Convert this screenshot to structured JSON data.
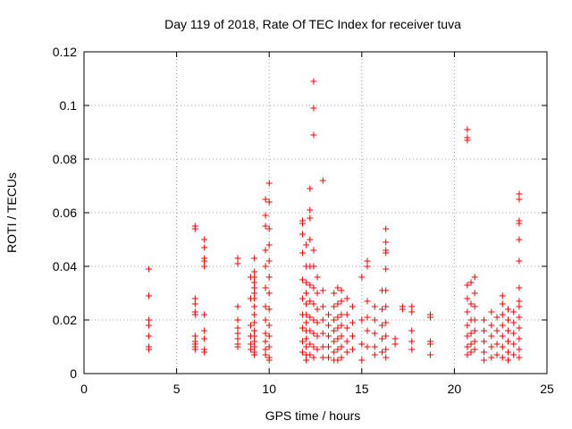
{
  "chart_data": {
    "type": "scatter",
    "title": "Day 119 of 2018, Rate Of TEC Index for receiver tuva",
    "xlabel": "GPS time / hours",
    "ylabel": "ROTI / TECUs",
    "xlim": [
      0,
      25
    ],
    "ylim": [
      0,
      0.12
    ],
    "xticks": [
      0,
      5,
      10,
      15,
      20,
      25
    ],
    "xtick_labels": [
      "0",
      "5",
      "10",
      "15",
      "20",
      "25"
    ],
    "yticks": [
      0,
      0.02,
      0.04,
      0.06,
      0.08,
      0.1,
      0.12
    ],
    "ytick_labels": [
      "0",
      "0.02",
      "0.04",
      "0.06",
      "0.08",
      "0.1",
      "0.12"
    ],
    "grid": true,
    "marker": "+",
    "color": "#ff0000",
    "series": [
      {
        "name": "ROTI",
        "points": [
          [
            3.5,
            0.039
          ],
          [
            3.5,
            0.029
          ],
          [
            3.5,
            0.02
          ],
          [
            3.5,
            0.018
          ],
          [
            3.5,
            0.014
          ],
          [
            3.5,
            0.01
          ],
          [
            3.5,
            0.009
          ],
          [
            6.0,
            0.055
          ],
          [
            6.0,
            0.054
          ],
          [
            6.0,
            0.028
          ],
          [
            6.0,
            0.026
          ],
          [
            6.0,
            0.023
          ],
          [
            6.0,
            0.022
          ],
          [
            6.0,
            0.014
          ],
          [
            6.0,
            0.012
          ],
          [
            6.0,
            0.011
          ],
          [
            6.0,
            0.01
          ],
          [
            6.0,
            0.009
          ],
          [
            6.5,
            0.05
          ],
          [
            6.5,
            0.047
          ],
          [
            6.5,
            0.043
          ],
          [
            6.5,
            0.042
          ],
          [
            6.5,
            0.04
          ],
          [
            6.5,
            0.022
          ],
          [
            6.5,
            0.016
          ],
          [
            6.5,
            0.013
          ],
          [
            6.5,
            0.009
          ],
          [
            6.5,
            0.008
          ],
          [
            8.3,
            0.043
          ],
          [
            8.3,
            0.041
          ],
          [
            8.3,
            0.025
          ],
          [
            8.3,
            0.02
          ],
          [
            8.3,
            0.017
          ],
          [
            8.3,
            0.015
          ],
          [
            8.3,
            0.013
          ],
          [
            8.3,
            0.011
          ],
          [
            8.3,
            0.01
          ],
          [
            9.2,
            0.043
          ],
          [
            9.2,
            0.038
          ],
          [
            9.2,
            0.036
          ],
          [
            9.2,
            0.034
          ],
          [
            9.2,
            0.032
          ],
          [
            9.2,
            0.03
          ],
          [
            9.2,
            0.028
          ],
          [
            9.2,
            0.025
          ],
          [
            9.2,
            0.022
          ],
          [
            9.2,
            0.019
          ],
          [
            9.2,
            0.016
          ],
          [
            9.2,
            0.014
          ],
          [
            9.2,
            0.012
          ],
          [
            9.2,
            0.01
          ],
          [
            9.2,
            0.008
          ],
          [
            9.2,
            0.007
          ],
          [
            9.0,
            0.036
          ],
          [
            9.0,
            0.028
          ],
          [
            9.0,
            0.018
          ],
          [
            9.0,
            0.014
          ],
          [
            9.0,
            0.011
          ],
          [
            9.0,
            0.009
          ],
          [
            9.8,
            0.065
          ],
          [
            9.8,
            0.059
          ],
          [
            9.8,
            0.055
          ],
          [
            9.8,
            0.046
          ],
          [
            9.8,
            0.04
          ],
          [
            9.8,
            0.032
          ],
          [
            9.8,
            0.025
          ],
          [
            9.8,
            0.02
          ],
          [
            9.8,
            0.015
          ],
          [
            9.8,
            0.012
          ],
          [
            9.8,
            0.009
          ],
          [
            9.8,
            0.007
          ],
          [
            10.0,
            0.071
          ],
          [
            10.0,
            0.064
          ],
          [
            10.0,
            0.054
          ],
          [
            10.0,
            0.048
          ],
          [
            10.0,
            0.042
          ],
          [
            10.0,
            0.036
          ],
          [
            10.0,
            0.03
          ],
          [
            10.0,
            0.024
          ],
          [
            10.0,
            0.018
          ],
          [
            10.0,
            0.014
          ],
          [
            10.0,
            0.01
          ],
          [
            10.0,
            0.006
          ],
          [
            10.0,
            0.005
          ],
          [
            11.8,
            0.057
          ],
          [
            11.8,
            0.056
          ],
          [
            11.8,
            0.052
          ],
          [
            11.8,
            0.045
          ],
          [
            11.8,
            0.035
          ],
          [
            11.8,
            0.028
          ],
          [
            11.8,
            0.022
          ],
          [
            11.8,
            0.017
          ],
          [
            11.8,
            0.012
          ],
          [
            11.8,
            0.008
          ],
          [
            12.0,
            0.048
          ],
          [
            12.0,
            0.04
          ],
          [
            12.0,
            0.034
          ],
          [
            12.0,
            0.03
          ],
          [
            12.0,
            0.026
          ],
          [
            12.0,
            0.022
          ],
          [
            12.0,
            0.019
          ],
          [
            12.0,
            0.016
          ],
          [
            12.0,
            0.013
          ],
          [
            12.0,
            0.01
          ],
          [
            12.0,
            0.007
          ],
          [
            12.0,
            0.005
          ],
          [
            12.2,
            0.069
          ],
          [
            12.2,
            0.061
          ],
          [
            12.2,
            0.058
          ],
          [
            12.2,
            0.05
          ],
          [
            12.2,
            0.04
          ],
          [
            12.2,
            0.033
          ],
          [
            12.2,
            0.027
          ],
          [
            12.2,
            0.021
          ],
          [
            12.2,
            0.016
          ],
          [
            12.2,
            0.011
          ],
          [
            12.2,
            0.007
          ],
          [
            12.4,
            0.109
          ],
          [
            12.4,
            0.099
          ],
          [
            12.4,
            0.089
          ],
          [
            12.4,
            0.046
          ],
          [
            12.4,
            0.04
          ],
          [
            12.4,
            0.032
          ],
          [
            12.4,
            0.026
          ],
          [
            12.4,
            0.02
          ],
          [
            12.4,
            0.015
          ],
          [
            12.4,
            0.01
          ],
          [
            12.4,
            0.006
          ],
          [
            12.6,
            0.036
          ],
          [
            12.6,
            0.03
          ],
          [
            12.6,
            0.024
          ],
          [
            12.6,
            0.019
          ],
          [
            12.6,
            0.014
          ],
          [
            12.6,
            0.009
          ],
          [
            12.9,
            0.072
          ],
          [
            12.9,
            0.031
          ],
          [
            12.9,
            0.025
          ],
          [
            12.9,
            0.02
          ],
          [
            12.9,
            0.015
          ],
          [
            12.9,
            0.01
          ],
          [
            12.9,
            0.006
          ],
          [
            13.2,
            0.022
          ],
          [
            13.2,
            0.018
          ],
          [
            13.2,
            0.014
          ],
          [
            13.2,
            0.01
          ],
          [
            13.2,
            0.006
          ],
          [
            13.5,
            0.03
          ],
          [
            13.5,
            0.025
          ],
          [
            13.5,
            0.02
          ],
          [
            13.5,
            0.016
          ],
          [
            13.5,
            0.012
          ],
          [
            13.5,
            0.008
          ],
          [
            13.5,
            0.005
          ],
          [
            13.7,
            0.032
          ],
          [
            13.7,
            0.026
          ],
          [
            13.7,
            0.021
          ],
          [
            13.7,
            0.017
          ],
          [
            13.7,
            0.013
          ],
          [
            13.7,
            0.009
          ],
          [
            13.7,
            0.005
          ],
          [
            13.9,
            0.031
          ],
          [
            13.9,
            0.027
          ],
          [
            13.9,
            0.022
          ],
          [
            13.9,
            0.018
          ],
          [
            13.9,
            0.014
          ],
          [
            13.9,
            0.01
          ],
          [
            13.9,
            0.006
          ],
          [
            14.2,
            0.028
          ],
          [
            14.2,
            0.022
          ],
          [
            14.2,
            0.017
          ],
          [
            14.2,
            0.012
          ],
          [
            14.2,
            0.008
          ],
          [
            14.5,
            0.025
          ],
          [
            14.5,
            0.019
          ],
          [
            14.5,
            0.014
          ],
          [
            14.5,
            0.009
          ],
          [
            15.0,
            0.036
          ],
          [
            15.0,
            0.02
          ],
          [
            15.0,
            0.011
          ],
          [
            15.0,
            0.005
          ],
          [
            15.3,
            0.042
          ],
          [
            15.3,
            0.04
          ],
          [
            15.3,
            0.027
          ],
          [
            15.3,
            0.021
          ],
          [
            15.3,
            0.016
          ],
          [
            15.3,
            0.01
          ],
          [
            15.7,
            0.025
          ],
          [
            15.7,
            0.02
          ],
          [
            15.7,
            0.015
          ],
          [
            15.7,
            0.01
          ],
          [
            15.7,
            0.007
          ],
          [
            16.1,
            0.031
          ],
          [
            16.1,
            0.024
          ],
          [
            16.1,
            0.018
          ],
          [
            16.1,
            0.013
          ],
          [
            16.1,
            0.008
          ],
          [
            16.3,
            0.054
          ],
          [
            16.3,
            0.049
          ],
          [
            16.3,
            0.046
          ],
          [
            16.3,
            0.045
          ],
          [
            16.3,
            0.039
          ],
          [
            16.3,
            0.031
          ],
          [
            16.3,
            0.025
          ],
          [
            16.3,
            0.019
          ],
          [
            16.3,
            0.014
          ],
          [
            16.3,
            0.009
          ],
          [
            16.3,
            0.006
          ],
          [
            16.8,
            0.013
          ],
          [
            16.8,
            0.011
          ],
          [
            17.2,
            0.025
          ],
          [
            17.2,
            0.024
          ],
          [
            17.7,
            0.025
          ],
          [
            17.7,
            0.023
          ],
          [
            17.7,
            0.016
          ],
          [
            17.7,
            0.012
          ],
          [
            17.7,
            0.009
          ],
          [
            18.7,
            0.022
          ],
          [
            18.7,
            0.021
          ],
          [
            18.7,
            0.012
          ],
          [
            18.7,
            0.011
          ],
          [
            18.7,
            0.007
          ],
          [
            20.7,
            0.091
          ],
          [
            20.7,
            0.088
          ],
          [
            20.7,
            0.087
          ],
          [
            20.7,
            0.033
          ],
          [
            20.7,
            0.028
          ],
          [
            20.7,
            0.023
          ],
          [
            20.7,
            0.018
          ],
          [
            20.7,
            0.014
          ],
          [
            20.7,
            0.01
          ],
          [
            20.7,
            0.007
          ],
          [
            20.9,
            0.034
          ],
          [
            20.9,
            0.026
          ],
          [
            20.9,
            0.02
          ],
          [
            20.9,
            0.015
          ],
          [
            20.9,
            0.011
          ],
          [
            20.9,
            0.008
          ],
          [
            21.1,
            0.036
          ],
          [
            21.1,
            0.03
          ],
          [
            21.1,
            0.025
          ],
          [
            21.1,
            0.02
          ],
          [
            21.1,
            0.016
          ],
          [
            21.1,
            0.012
          ],
          [
            21.1,
            0.009
          ],
          [
            21.6,
            0.02
          ],
          [
            21.6,
            0.016
          ],
          [
            21.6,
            0.012
          ],
          [
            21.6,
            0.008
          ],
          [
            21.6,
            0.005
          ],
          [
            22.0,
            0.023
          ],
          [
            22.0,
            0.018
          ],
          [
            22.0,
            0.014
          ],
          [
            22.0,
            0.01
          ],
          [
            22.0,
            0.006
          ],
          [
            22.3,
            0.021
          ],
          [
            22.3,
            0.016
          ],
          [
            22.3,
            0.011
          ],
          [
            22.3,
            0.007
          ],
          [
            22.6,
            0.029
          ],
          [
            22.6,
            0.026
          ],
          [
            22.6,
            0.022
          ],
          [
            22.6,
            0.018
          ],
          [
            22.6,
            0.014
          ],
          [
            22.6,
            0.01
          ],
          [
            22.6,
            0.006
          ],
          [
            22.9,
            0.024
          ],
          [
            22.9,
            0.02
          ],
          [
            22.9,
            0.016
          ],
          [
            22.9,
            0.012
          ],
          [
            22.9,
            0.008
          ],
          [
            22.9,
            0.005
          ],
          [
            23.2,
            0.023
          ],
          [
            23.2,
            0.019
          ],
          [
            23.2,
            0.015
          ],
          [
            23.2,
            0.011
          ],
          [
            23.2,
            0.007
          ],
          [
            23.5,
            0.067
          ],
          [
            23.5,
            0.065
          ],
          [
            23.5,
            0.057
          ],
          [
            23.5,
            0.056
          ],
          [
            23.5,
            0.05
          ],
          [
            23.5,
            0.042
          ],
          [
            23.5,
            0.032
          ],
          [
            23.5,
            0.027
          ],
          [
            23.5,
            0.025
          ],
          [
            23.5,
            0.021
          ],
          [
            23.5,
            0.017
          ],
          [
            23.5,
            0.013
          ],
          [
            23.5,
            0.009
          ],
          [
            23.5,
            0.006
          ]
        ]
      }
    ]
  }
}
